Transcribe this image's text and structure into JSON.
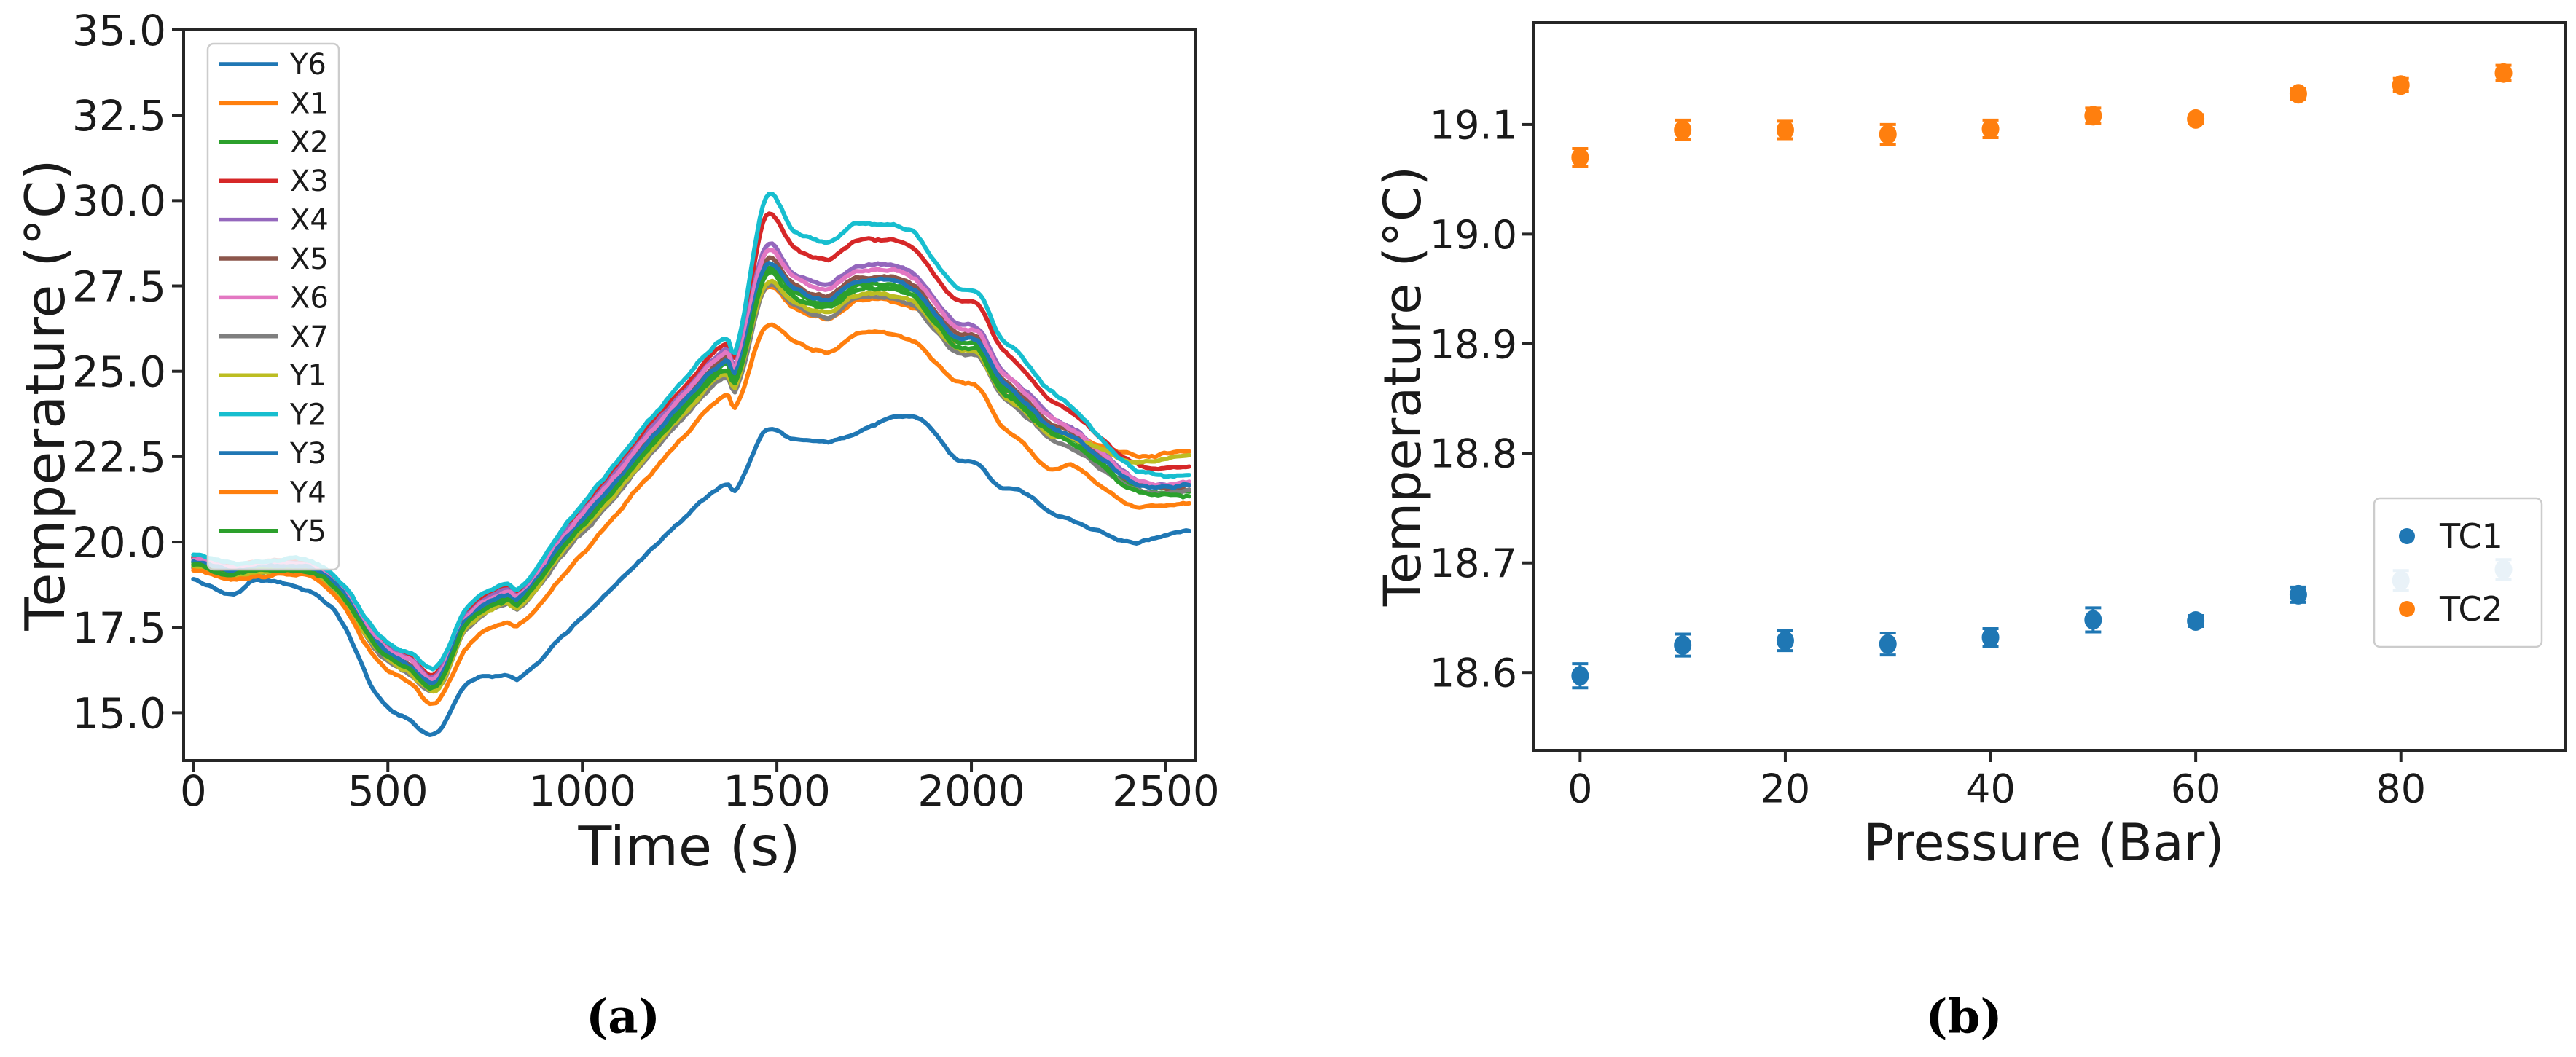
{
  "figure": {
    "caption_a": "(a)",
    "caption_b": "(b)"
  },
  "chart_data": [
    {
      "id": "a",
      "type": "line",
      "title": "(a)",
      "xlabel": "Time (s)",
      "ylabel": "Temperature (°C)",
      "xticks": [
        "0",
        "500",
        "1000",
        "1500",
        "2000",
        "2500"
      ],
      "yticks": [
        "15.0",
        "17.5",
        "20.0",
        "22.5",
        "25.0",
        "27.5",
        "30.0",
        "32.5",
        "35.0"
      ],
      "xlim": [
        -25,
        2575
      ],
      "ylim": [
        13.6,
        35.0
      ],
      "grid": false,
      "legend_position": "upper left",
      "linewidth": 6,
      "x_keypoints": [
        0,
        100,
        160,
        300,
        380,
        470,
        560,
        625,
        700,
        800,
        840,
        950,
        1050,
        1160,
        1270,
        1370,
        1395,
        1470,
        1540,
        1630,
        1700,
        1780,
        1855,
        1905,
        1960,
        2020,
        2070,
        2130,
        2200,
        2260,
        2330,
        2410,
        2480,
        2560
      ],
      "series": [
        {
          "name": "Y6",
          "color": "#1f77b4",
          "noise": 0.045,
          "values": [
            18.9,
            18.45,
            18.85,
            18.55,
            17.7,
            15.55,
            14.75,
            14.4,
            15.85,
            16.1,
            16.05,
            17.25,
            18.35,
            19.6,
            20.8,
            21.7,
            21.55,
            23.25,
            23.0,
            22.95,
            23.15,
            23.6,
            23.65,
            23.2,
            22.4,
            22.3,
            21.6,
            21.5,
            20.9,
            20.6,
            20.3,
            19.98,
            20.15,
            20.35
          ]
        },
        {
          "name": "X1",
          "color": "#ff7f0e",
          "noise": 0.06,
          "values": [
            19.32,
            19.02,
            19.12,
            19.12,
            18.42,
            16.9,
            16.18,
            15.72,
            17.48,
            18.23,
            18.18,
            19.74,
            21.0,
            22.48,
            23.88,
            24.98,
            24.68,
            27.4,
            26.9,
            26.55,
            27.05,
            27.1,
            26.85,
            26.4,
            25.72,
            25.55,
            24.5,
            23.92,
            23.18,
            23.1,
            22.85,
            22.55,
            22.55,
            22.65
          ]
        },
        {
          "name": "X2",
          "color": "#2ca02c",
          "noise": 0.06,
          "values": [
            19.4,
            19.1,
            19.2,
            19.2,
            18.5,
            17.0,
            16.3,
            15.85,
            17.6,
            18.35,
            18.3,
            19.9,
            21.2,
            22.7,
            24.1,
            25.2,
            24.9,
            27.9,
            27.35,
            27.0,
            27.5,
            27.55,
            27.3,
            26.6,
            25.9,
            25.75,
            24.7,
            24.1,
            23.35,
            23.0,
            22.35,
            21.62,
            21.42,
            21.45
          ]
        },
        {
          "name": "X3",
          "color": "#d62728",
          "noise": 0.055,
          "values": [
            19.6,
            19.3,
            19.4,
            19.4,
            18.72,
            17.27,
            16.62,
            16.19,
            17.92,
            18.65,
            18.6,
            20.3,
            21.65,
            23.2,
            24.65,
            25.8,
            25.5,
            29.5,
            28.65,
            28.3,
            28.8,
            28.85,
            28.6,
            27.8,
            27.1,
            26.9,
            25.75,
            25.1,
            24.2,
            23.8,
            23.1,
            22.35,
            22.15,
            22.2
          ]
        },
        {
          "name": "X4",
          "color": "#9467bd",
          "noise": 0.06,
          "values": [
            19.55,
            19.25,
            19.35,
            19.35,
            18.66,
            17.2,
            16.54,
            16.1,
            17.82,
            18.57,
            18.52,
            20.18,
            21.52,
            23.06,
            24.5,
            25.62,
            25.32,
            28.6,
            27.9,
            27.55,
            28.05,
            28.1,
            27.85,
            27.1,
            26.4,
            26.23,
            25.15,
            24.52,
            23.73,
            23.35,
            22.65,
            21.9,
            21.67,
            21.7
          ]
        },
        {
          "name": "X5",
          "color": "#8c564b",
          "noise": 0.06,
          "values": [
            19.48,
            19.18,
            19.28,
            19.28,
            18.58,
            17.1,
            16.42,
            15.97,
            17.7,
            18.45,
            18.4,
            20.02,
            21.34,
            22.86,
            24.28,
            25.4,
            25.1,
            28.2,
            27.55,
            27.2,
            27.7,
            27.75,
            27.5,
            26.8,
            26.12,
            25.95,
            24.9,
            24.28,
            23.5,
            23.17,
            22.52,
            21.8,
            21.57,
            21.5
          ]
        },
        {
          "name": "X6",
          "color": "#e377c2",
          "noise": 0.06,
          "values": [
            19.52,
            19.22,
            19.32,
            19.32,
            18.63,
            17.16,
            16.5,
            16.05,
            17.78,
            18.53,
            18.48,
            20.12,
            21.46,
            23.0,
            24.42,
            25.54,
            25.24,
            28.45,
            27.77,
            27.42,
            27.92,
            27.97,
            27.72,
            27.0,
            26.3,
            26.13,
            25.06,
            24.44,
            23.65,
            23.3,
            22.63,
            21.89,
            21.68,
            21.75
          ]
        },
        {
          "name": "X7",
          "color": "#7f7f7f",
          "noise": 0.06,
          "values": [
            19.28,
            18.98,
            19.08,
            19.08,
            18.36,
            16.84,
            16.12,
            15.66,
            17.42,
            18.17,
            18.12,
            19.64,
            20.9,
            22.36,
            23.75,
            24.85,
            24.55,
            27.45,
            26.95,
            26.6,
            27.1,
            27.15,
            26.9,
            26.25,
            25.58,
            25.4,
            24.38,
            23.8,
            23.05,
            22.75,
            22.18,
            21.6,
            21.45,
            21.5
          ]
        },
        {
          "name": "Y1",
          "color": "#bcbd22",
          "noise": 0.06,
          "values": [
            19.3,
            19.0,
            19.1,
            19.1,
            18.4,
            16.88,
            16.16,
            15.7,
            17.45,
            18.2,
            18.15,
            19.7,
            20.98,
            22.45,
            23.85,
            24.95,
            24.65,
            27.55,
            27.05,
            26.7,
            27.2,
            27.25,
            27.0,
            26.35,
            25.68,
            25.5,
            24.45,
            23.88,
            23.15,
            23.0,
            22.75,
            22.35,
            22.4,
            22.55
          ]
        },
        {
          "name": "Y2",
          "color": "#17becf",
          "noise": 0.06,
          "values": [
            19.65,
            19.35,
            19.45,
            19.45,
            18.8,
            17.35,
            16.72,
            16.33,
            18.02,
            18.75,
            18.7,
            20.4,
            21.8,
            23.4,
            24.85,
            26.0,
            25.7,
            30.05,
            29.15,
            28.8,
            29.3,
            29.3,
            29.05,
            28.2,
            27.45,
            27.25,
            26.1,
            25.4,
            24.45,
            23.95,
            23.05,
            22.2,
            21.95,
            21.95
          ]
        },
        {
          "name": "Y3",
          "color": "#1f77b4",
          "noise": 0.06,
          "values": [
            19.45,
            19.15,
            19.25,
            19.25,
            18.55,
            17.06,
            16.37,
            15.92,
            17.66,
            18.41,
            18.36,
            19.98,
            21.28,
            22.8,
            24.2,
            25.3,
            25.0,
            28.05,
            27.45,
            27.1,
            27.6,
            27.65,
            27.4,
            26.7,
            26.0,
            25.85,
            24.8,
            24.18,
            23.42,
            23.1,
            22.48,
            21.8,
            21.6,
            21.65
          ]
        },
        {
          "name": "Y4",
          "color": "#ff7f0e",
          "noise": 0.055,
          "values": [
            19.2,
            18.9,
            19.0,
            19.0,
            18.2,
            16.55,
            15.85,
            15.3,
            16.9,
            17.65,
            17.6,
            19.0,
            20.3,
            21.8,
            23.2,
            24.3,
            24.0,
            26.3,
            25.9,
            25.55,
            26.05,
            26.1,
            25.85,
            25.3,
            24.7,
            24.55,
            23.5,
            22.9,
            22.15,
            22.25,
            21.65,
            21.05,
            21.05,
            21.15
          ]
        },
        {
          "name": "Y5",
          "color": "#2ca02c",
          "noise": 0.06,
          "values": [
            19.35,
            19.05,
            19.15,
            19.15,
            18.45,
            16.94,
            16.24,
            15.79,
            17.54,
            18.29,
            18.24,
            19.82,
            21.1,
            22.58,
            23.98,
            25.06,
            24.76,
            27.75,
            27.2,
            26.85,
            27.35,
            27.4,
            27.15,
            26.45,
            25.75,
            25.6,
            24.55,
            23.96,
            23.22,
            22.9,
            22.28,
            21.55,
            21.35,
            21.38
          ]
        }
      ]
    },
    {
      "id": "b",
      "type": "scatter",
      "title": "(b)",
      "xlabel": "Pressure (Bar)",
      "ylabel": "Temperature (°C)",
      "xticks": [
        "0",
        "20",
        "40",
        "60",
        "80"
      ],
      "yticks": [
        "18.6",
        "18.7",
        "18.8",
        "18.9",
        "19.0",
        "19.1"
      ],
      "xlim": [
        -4.5,
        96.0
      ],
      "ylim": [
        18.529,
        19.193
      ],
      "grid": false,
      "legend_position": "center right",
      "x": [
        0,
        10,
        20,
        30,
        40,
        50,
        60,
        70,
        80,
        90
      ],
      "series": [
        {
          "name": "TC1",
          "color": "#1f77b4",
          "values": [
            18.597,
            18.625,
            18.629,
            18.626,
            18.632,
            18.648,
            18.647,
            18.671,
            18.684,
            18.694
          ],
          "errors": [
            0.011,
            0.01,
            0.009,
            0.01,
            0.008,
            0.011,
            0.005,
            0.007,
            0.009,
            0.009
          ]
        },
        {
          "name": "TC2",
          "color": "#ff7f0e",
          "values": [
            19.07,
            19.095,
            19.095,
            19.091,
            19.096,
            19.108,
            19.105,
            19.128,
            19.136,
            19.147
          ],
          "errors": [
            0.008,
            0.009,
            0.008,
            0.009,
            0.008,
            0.007,
            0.004,
            0.005,
            0.006,
            0.007
          ]
        }
      ]
    }
  ]
}
